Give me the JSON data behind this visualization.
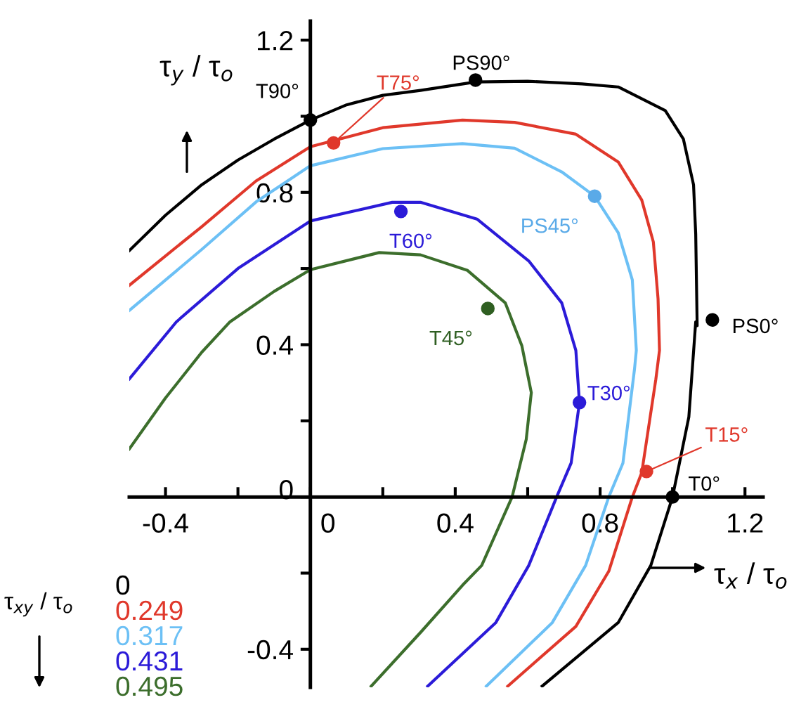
{
  "chart_data": {
    "type": "line",
    "xlabel": "τ$_{x}$ / τ$_{o}$",
    "ylabel": "τ$_{y}$ / τ$_{o}$",
    "legend_title": "τ$_{xy}$ / τ$_{o}$",
    "xlim": [
      -0.5,
      1.25
    ],
    "ylim": [
      -0.5,
      1.25
    ],
    "xticks": [
      -0.4,
      {
        "value": -0.2,
        "label": null
      },
      0,
      {
        "value": 0.2,
        "label": null
      },
      0.4,
      {
        "value": 0.6,
        "label": null
      },
      0.8,
      {
        "value": 1.0,
        "label": null
      },
      1.2
    ],
    "yticks": [
      -0.4,
      {
        "value": -0.2,
        "label": null
      },
      0,
      {
        "value": 0.2,
        "label": null
      },
      0.4,
      {
        "value": 0.6,
        "label": null
      },
      0.8,
      {
        "value": 1.0,
        "label": null
      },
      1.2
    ],
    "grid": false,
    "legend": "bottom left",
    "marker": "none",
    "line_style": "solid",
    "series": [
      {
        "name": "0",
        "color": "#000000",
        "x": [
          -0.5,
          -0.4,
          -0.3,
          -0.2,
          -0.1,
          0,
          0.1,
          0.2,
          0.304,
          0.456,
          0.6,
          0.75,
          0.85,
          0.98,
          1.03,
          1.058,
          1.064,
          1.068,
          1.064,
          1.045,
          1.0,
          0.94,
          0.85,
          0.64
        ],
        "values": [
          0.647,
          0.74,
          0.82,
          0.885,
          0.94,
          0.99,
          1.03,
          1.055,
          1.068,
          1.09,
          1.092,
          1.085,
          1.077,
          1.015,
          0.94,
          0.82,
          0.69,
          0.45,
          0.46,
          0.21,
          0.0,
          -0.18,
          -0.33,
          -0.497
        ]
      },
      {
        "name": "0.249",
        "color": "#e0382b",
        "x": [
          -0.5,
          -0.3,
          -0.15,
          0,
          0.2,
          0.42,
          0.564,
          0.733,
          0.85,
          0.915,
          0.947,
          0.96,
          0.964,
          0.954,
          0.915,
          0.889,
          0.824,
          0.733,
          0.545
        ],
        "values": [
          0.556,
          0.71,
          0.83,
          0.92,
          0.97,
          0.99,
          0.984,
          0.953,
          0.88,
          0.78,
          0.67,
          0.52,
          0.385,
          0.31,
          0.064,
          0.0,
          -0.195,
          -0.34,
          -0.497
        ]
      },
      {
        "name": "0.317",
        "color": "#6cc0f5",
        "x": [
          -0.5,
          -0.3,
          -0.15,
          0,
          0.2,
          0.42,
          0.564,
          0.694,
          0.785,
          0.85,
          0.889,
          0.9,
          0.895,
          0.863,
          0.824,
          0.76,
          0.668,
          0.486
        ],
        "values": [
          0.49,
          0.65,
          0.775,
          0.87,
          0.915,
          0.928,
          0.916,
          0.854,
          0.79,
          0.694,
          0.57,
          0.385,
          0.336,
          0.089,
          0.0,
          -0.18,
          -0.33,
          -0.497
        ]
      },
      {
        "name": "0.431",
        "color": "#2b1bd8",
        "x": [
          -0.5,
          -0.37,
          -0.2,
          0,
          0.226,
          0.304,
          0.46,
          0.603,
          0.694,
          0.733,
          0.743,
          0.72,
          0.68,
          0.603,
          0.512,
          0.324
        ],
        "values": [
          0.31,
          0.46,
          0.6,
          0.725,
          0.774,
          0.774,
          0.73,
          0.62,
          0.51,
          0.385,
          0.248,
          0.089,
          0.0,
          -0.18,
          -0.33,
          -0.497
        ]
      },
      {
        "name": "0.495",
        "color": "#3c6e2c",
        "x": [
          -0.5,
          -0.4,
          -0.3,
          -0.222,
          -0.1,
          0,
          0.19,
          0.304,
          0.434,
          0.538,
          0.584,
          0.61,
          0.596,
          0.557,
          0.473,
          0.42,
          0.304,
          0.168
        ],
        "values": [
          0.126,
          0.26,
          0.38,
          0.46,
          0.54,
          0.597,
          0.642,
          0.636,
          0.595,
          0.51,
          0.397,
          0.274,
          0.151,
          0.0,
          -0.18,
          -0.232,
          -0.356,
          -0.497
        ]
      },
      {
        "type": "scatter",
        "marker": "circle",
        "color": "#000000",
        "x": [
          0,
          0.456,
          1.11,
          1.0
        ],
        "values": [
          0.99,
          1.095,
          0.465,
          0.0
        ]
      },
      {
        "type": "scatter",
        "marker": "circle",
        "color": "#e0382b",
        "x": [
          0.064,
          0.928
        ],
        "values": [
          0.93,
          0.067
        ]
      },
      {
        "type": "scatter",
        "marker": "circle",
        "color": "#5aaae8",
        "x": [
          0.785
        ],
        "values": [
          0.79
        ]
      },
      {
        "type": "scatter",
        "marker": "circle",
        "color": "#2b1bd8",
        "x": [
          0.25,
          0.743
        ],
        "values": [
          0.75,
          0.248
        ]
      },
      {
        "type": "scatter",
        "marker": "circle",
        "color": "#2f5f22",
        "x": [
          0.49
        ],
        "values": [
          0.495
        ]
      }
    ],
    "annotations": [
      {
        "text": "T90°",
        "x": 0,
        "y": 0.99
      },
      {
        "text": "PS90°",
        "x": 0.456,
        "y": 1.095
      },
      {
        "text": "T75°",
        "x": 0.064,
        "y": 0.93
      },
      {
        "text": "PS45°",
        "x": 0.785,
        "y": 0.79
      },
      {
        "text": "T60°",
        "x": 0.25,
        "y": 0.75
      },
      {
        "text": "T45°",
        "x": 0.49,
        "y": 0.495
      },
      {
        "text": "PS0°",
        "x": 1.11,
        "y": 0.465
      },
      {
        "text": "T30°",
        "x": 0.743,
        "y": 0.248
      },
      {
        "text": "T15°",
        "x": 0.928,
        "y": 0.067
      },
      {
        "text": "T0°",
        "x": 1.0,
        "y": 0.0
      }
    ]
  }
}
